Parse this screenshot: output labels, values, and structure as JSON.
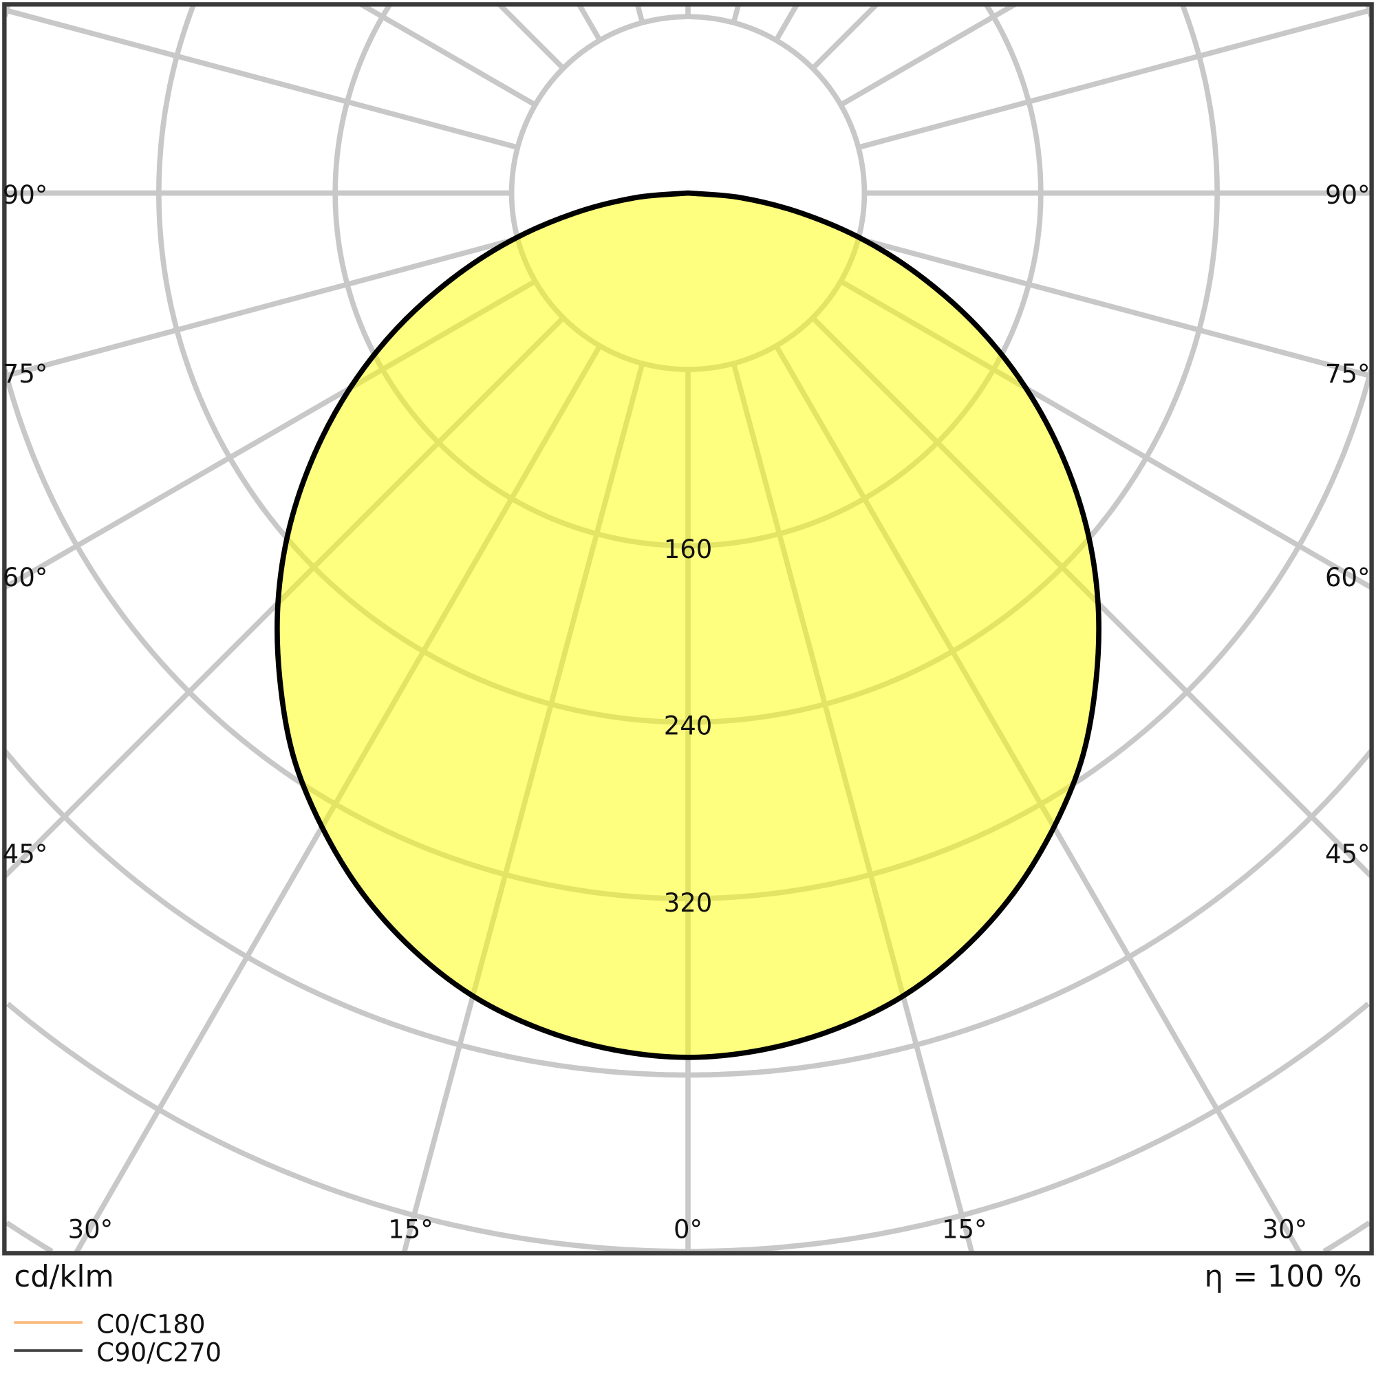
{
  "chart_data": {
    "type": "polar",
    "unit_label": "cd/klm",
    "efficiency_label": "η = 100 %",
    "radial_ticks": [
      80,
      160,
      240,
      320,
      400,
      480,
      560,
      640
    ],
    "radial_tick_labels": [
      "160",
      "240",
      "320"
    ],
    "angle_labels_bottom": [
      "30°",
      "15°",
      "0°",
      "15°",
      "30°"
    ],
    "angle_labels_side": [
      "90°",
      "75°",
      "60°",
      "45°"
    ],
    "angles_deg": [
      0,
      5,
      10,
      15,
      20,
      25,
      30,
      35,
      40,
      45,
      50,
      55,
      60,
      65,
      70,
      75,
      80,
      85,
      90
    ],
    "series": [
      {
        "name": "C0/C180",
        "color": "#f9b97a",
        "values": [
          392,
          390,
          385,
          377,
          365,
          350,
          332,
          312,
          288,
          263,
          236,
          207,
          177,
          146,
          114,
          83,
          52,
          24,
          0
        ]
      },
      {
        "name": "C90/C270",
        "color": "#000000",
        "values": [
          392,
          390,
          385,
          377,
          365,
          350,
          332,
          312,
          288,
          263,
          236,
          207,
          177,
          146,
          114,
          83,
          52,
          24,
          0
        ]
      }
    ],
    "fill_color": "#ffff80",
    "grid": true
  }
}
